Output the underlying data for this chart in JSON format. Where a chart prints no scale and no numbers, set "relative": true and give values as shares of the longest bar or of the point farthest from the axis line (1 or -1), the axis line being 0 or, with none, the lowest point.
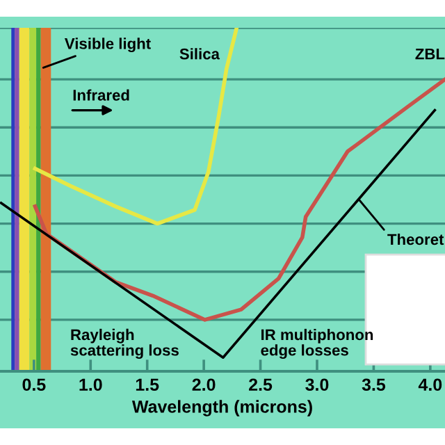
{
  "chart_data": {
    "type": "line",
    "relative": true,
    "xlabel": "Wavelength (microns)",
    "xlim": [
      0.2,
      4.13
    ],
    "xticks": [
      {
        "value": 0.5,
        "label": "0.5"
      },
      {
        "value": 1.0,
        "label": "1.0"
      },
      {
        "value": 1.5,
        "label": "1.5"
      },
      {
        "value": 2.0,
        "label": "2.0"
      },
      {
        "value": 2.5,
        "label": "2.5"
      },
      {
        "value": 3.0,
        "label": "3.0"
      },
      {
        "value": 3.5,
        "label": "3.5"
      },
      {
        "value": 4.0,
        "label": "4.0"
      }
    ],
    "tick_labels": "x",
    "marker": "none",
    "line_style": "solid",
    "series": [
      {
        "name": "Silica",
        "color": "#e6e845",
        "x": [
          0.51,
          0.82,
          1.22,
          1.59,
          1.92,
          2.04,
          2.13,
          2.2,
          2.29
        ],
        "values": [
          0.59,
          0.54,
          0.48,
          0.43,
          0.47,
          0.58,
          0.74,
          0.88,
          1.0
        ]
      },
      {
        "name": "ZBL",
        "color": "#c9534b",
        "x": [
          0.51,
          0.61,
          1.22,
          1.55,
          2.01,
          2.33,
          2.66,
          2.87,
          2.9,
          3.27,
          3.8,
          4.13
        ],
        "values": [
          0.48,
          0.4,
          0.26,
          0.22,
          0.15,
          0.18,
          0.27,
          0.39,
          0.45,
          0.64,
          0.77,
          0.85
        ]
      },
      {
        "name": "Theoret",
        "color": "#000000",
        "x": [
          0.21,
          2.17,
          4.04
        ],
        "values": [
          0.49,
          0.04,
          0.76
        ]
      }
    ],
    "bands": [
      {
        "axis": "x",
        "from": 0.3,
        "to": 0.33,
        "color": "#2b3cc0"
      },
      {
        "axis": "x",
        "from": 0.33,
        "to": 0.37,
        "color": "#8a50b0"
      },
      {
        "axis": "x",
        "from": 0.37,
        "to": 0.46,
        "color": "#f0e040",
        "label": "Visible light"
      },
      {
        "axis": "x",
        "from": 0.46,
        "to": 0.52,
        "color": "#a8d840"
      },
      {
        "axis": "x",
        "from": 0.52,
        "to": 0.56,
        "color": "#40a840"
      },
      {
        "axis": "x",
        "from": 0.56,
        "to": 0.65,
        "color": "#e07030"
      }
    ],
    "ref_lines": [
      {
        "axis": "y",
        "value": 0.15,
        "color": "#3f8f7f"
      },
      {
        "axis": "y",
        "value": 0.29,
        "color": "#3f8f7f"
      },
      {
        "axis": "y",
        "value": 0.43,
        "color": "#3f8f7f"
      },
      {
        "axis": "y",
        "value": 0.57,
        "color": "#3f8f7f"
      },
      {
        "axis": "y",
        "value": 0.71,
        "color": "#3f8f7f"
      },
      {
        "axis": "y",
        "value": 0.85,
        "color": "#3f8f7f"
      },
      {
        "axis": "y",
        "value": 1.0,
        "color": "#3f8f7f"
      }
    ],
    "annotations": [
      "Infrared",
      "Rayleigh\nscattering loss",
      "IR multiphonon\nedge losses"
    ]
  }
}
